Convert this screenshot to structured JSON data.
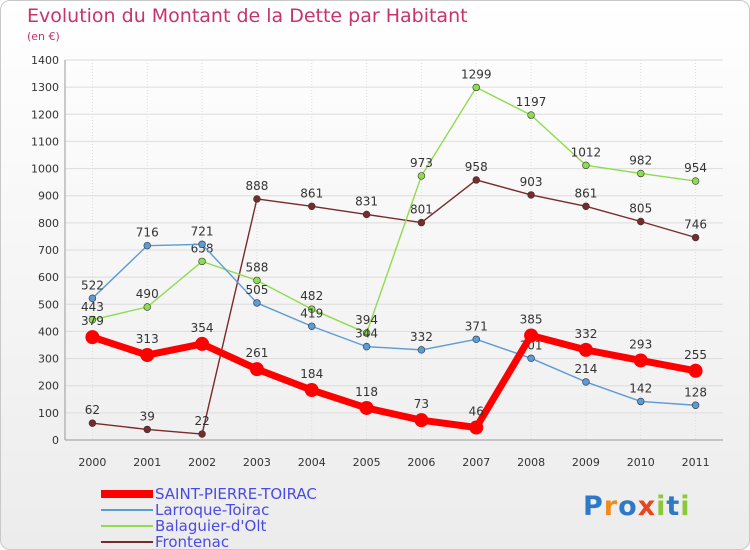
{
  "title": "Evolution du Montant de la Dette par Habitant",
  "subtitle": "(en €)",
  "logo": {
    "letters": [
      "P",
      "r",
      "o",
      "x",
      "i",
      "t",
      "i"
    ],
    "colors": [
      "#2e78c8",
      "#f08c1e",
      "#2e78c8",
      "#e8461e",
      "#8cc83c",
      "#2e78c8",
      "#8cc83c"
    ]
  },
  "chart_data": {
    "type": "line",
    "x": [
      "2000",
      "2001",
      "2002",
      "2003",
      "2004",
      "2005",
      "2006",
      "2007",
      "2008",
      "2009",
      "2010",
      "2011"
    ],
    "ylim": [
      0,
      1400
    ],
    "yticks": [
      "0",
      "100",
      "200",
      "300",
      "400",
      "500",
      "600",
      "700",
      "800",
      "900",
      "1000",
      "1100",
      "1200",
      "1300",
      "1400"
    ],
    "grid": true,
    "legend_placement": "bottom-left",
    "series": [
      {
        "name": "Frontenac",
        "color": "#7a2a2a",
        "thick": false,
        "values": [
          62,
          39,
          22,
          888,
          861,
          831,
          801,
          958,
          903,
          861,
          805,
          746
        ],
        "labels": [
          "62",
          "39",
          "22",
          "888",
          "861",
          "831",
          "801",
          "958",
          "903",
          "861",
          "805",
          "746"
        ]
      },
      {
        "name": "Balaguier-d'Olt",
        "color": "#8fdc4e",
        "thick": false,
        "values": [
          443,
          490,
          658,
          588,
          482,
          394,
          973,
          1299,
          1197,
          1012,
          982,
          954
        ],
        "labels": [
          "443",
          "490",
          "658",
          "588",
          "482",
          "394",
          "973",
          "1299",
          "1197",
          "1012",
          "982",
          "954"
        ]
      },
      {
        "name": "Larroque-Toirac",
        "color": "#5b9bd8",
        "thick": false,
        "values": [
          522,
          716,
          721,
          505,
          419,
          344,
          332,
          371,
          301,
          214,
          142,
          128
        ],
        "labels": [
          "522",
          "716",
          "721",
          "505",
          "419",
          "344",
          "332",
          "371",
          "301",
          "214",
          "142",
          "128"
        ]
      },
      {
        "name": "SAINT-PIERRE-TOIRAC",
        "color": "#ff0000",
        "thick": true,
        "values": [
          379,
          313,
          354,
          261,
          184,
          118,
          73,
          46,
          385,
          332,
          293,
          255
        ],
        "labels": [
          "379",
          "313",
          "354",
          "261",
          "184",
          "118",
          "73",
          "46",
          "385",
          "332",
          "293",
          "255"
        ]
      }
    ],
    "legend": [
      "SAINT-PIERRE-TOIRAC",
      "Larroque-Toirac",
      "Balaguier-d'Olt",
      "Frontenac"
    ]
  }
}
